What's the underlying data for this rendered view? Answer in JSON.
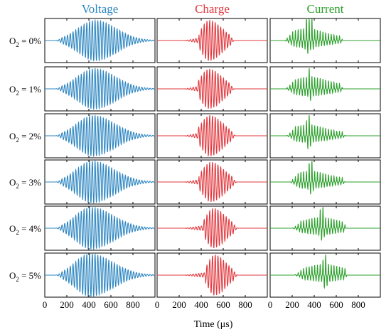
{
  "chart_data": {
    "type": "line",
    "columns": [
      {
        "name": "Voltage",
        "color": "#2e86c1"
      },
      {
        "name": "Charge",
        "color": "#e0383e"
      },
      {
        "name": "Current",
        "color": "#2ca02c"
      }
    ],
    "rows": [
      {
        "label_prefix": "O",
        "label_subscript": "2",
        "label_suffix": " = 0%",
        "voltage": {
          "start": 100,
          "end": 950,
          "peak": 460,
          "amp": 0.92
        },
        "charge": {
          "start": 250,
          "end": 660,
          "peak": 470,
          "amp": 0.92,
          "onset": 380
        },
        "current": {
          "start": 130,
          "end": 640,
          "peak": 330,
          "amp": 0.55,
          "spikes": [
            330,
            350,
            380
          ]
        }
      },
      {
        "label_prefix": "O",
        "label_subscript": "2",
        "label_suffix": " = 1%",
        "voltage": {
          "start": 100,
          "end": 950,
          "peak": 450,
          "amp": 0.92
        },
        "charge": {
          "start": 250,
          "end": 660,
          "peak": 470,
          "amp": 0.9,
          "onset": 370
        },
        "current": {
          "start": 140,
          "end": 640,
          "peak": 360,
          "amp": 0.55,
          "spikes": [
            360
          ]
        }
      },
      {
        "label_prefix": "O",
        "label_subscript": "2",
        "label_suffix": " = 2%",
        "voltage": {
          "start": 100,
          "end": 950,
          "peak": 440,
          "amp": 0.92
        },
        "charge": {
          "start": 250,
          "end": 670,
          "peak": 480,
          "amp": 0.92,
          "onset": 370
        },
        "current": {
          "start": 150,
          "end": 660,
          "peak": 340,
          "amp": 0.5,
          "spikes": [
            340,
            360
          ]
        }
      },
      {
        "label_prefix": "O",
        "label_subscript": "2",
        "label_suffix": " = 3%",
        "voltage": {
          "start": 100,
          "end": 950,
          "peak": 430,
          "amp": 0.95
        },
        "charge": {
          "start": 250,
          "end": 680,
          "peak": 490,
          "amp": 0.9,
          "onset": 380
        },
        "current": {
          "start": 180,
          "end": 660,
          "peak": 360,
          "amp": 0.5,
          "spikes": [
            360,
            380
          ]
        }
      },
      {
        "label_prefix": "O",
        "label_subscript": "2",
        "label_suffix": " = 4%",
        "voltage": {
          "start": 100,
          "end": 950,
          "peak": 420,
          "amp": 0.95
        },
        "charge": {
          "start": 250,
          "end": 690,
          "peak": 510,
          "amp": 0.9,
          "onset": 420
        },
        "current": {
          "start": 200,
          "end": 670,
          "peak": 460,
          "amp": 0.5,
          "spikes": [
            460,
            480
          ]
        }
      },
      {
        "label_prefix": "O",
        "label_subscript": "2",
        "label_suffix": " = 5%",
        "voltage": {
          "start": 100,
          "end": 950,
          "peak": 410,
          "amp": 0.97
        },
        "charge": {
          "start": 250,
          "end": 690,
          "peak": 520,
          "amp": 0.92,
          "onset": 440
        },
        "current": {
          "start": 220,
          "end": 680,
          "peak": 490,
          "amp": 0.5,
          "spikes": [
            490,
            510
          ]
        }
      }
    ],
    "x_ticks": [
      0,
      200,
      400,
      600,
      800
    ],
    "xlim": [
      0,
      1000
    ],
    "ylim": [
      -1,
      1
    ],
    "oscillation_period_us": 25,
    "xlabel": "Time (μs)",
    "grid": false
  }
}
